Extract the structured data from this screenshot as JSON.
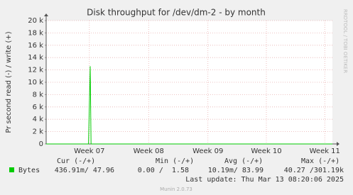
{
  "chart_data": {
    "type": "line",
    "title": "Disk throughput for /dev/dm-2 - by month",
    "y_label": "Pr second read (-) / write (+)",
    "side_text": "RRDTOOL / TOBI OETIKER",
    "x": [
      0,
      5.0,
      5.2,
      5.3,
      5.5,
      33.8
    ],
    "series": [
      {
        "name": "Bytes",
        "color": "#00cc00",
        "values": [
          0,
          0,
          12600,
          0,
          0,
          0
        ]
      }
    ],
    "xlim": [
      0,
      33.8
    ],
    "xticks": [
      {
        "value": 5.1,
        "label": "Week 07"
      },
      {
        "value": 12.1,
        "label": "Week 08"
      },
      {
        "value": 19.1,
        "label": "Week 09"
      },
      {
        "value": 26.0,
        "label": "Week 10"
      },
      {
        "value": 32.9,
        "label": "Week 11"
      }
    ],
    "ylim": [
      0,
      20000
    ],
    "yticks": [
      0,
      {
        "value": 2000,
        "label": "2 k"
      },
      {
        "value": 4000,
        "label": "4 k"
      },
      {
        "value": 6000,
        "label": "6 k"
      },
      {
        "value": 8000,
        "label": "8 k"
      },
      {
        "value": 10000,
        "label": "10 k"
      },
      {
        "value": 12000,
        "label": "12 k"
      },
      {
        "value": 14000,
        "label": "14 k"
      },
      {
        "value": 16000,
        "label": "16 k"
      },
      {
        "value": 18000,
        "label": "18 k"
      },
      {
        "value": 20000,
        "label": "20 k"
      }
    ],
    "grid": true,
    "legend_table": {
      "headers": [
        "Cur (-/+)",
        "Min (-/+)",
        "Avg (-/+)",
        "Max (-/+)"
      ],
      "row": [
        "436.91m/ 47.96",
        "0.00 /  1.58",
        "10.19m/ 83.99",
        "40.27 /301.19k"
      ]
    },
    "last_update": "Last update: Thu Mar 13 08:20:06 2025",
    "footer": "Munin 2.0.73"
  }
}
